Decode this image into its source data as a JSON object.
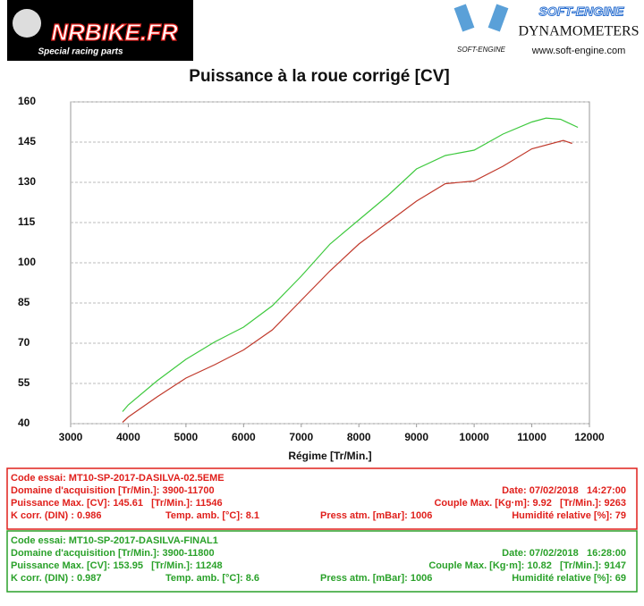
{
  "header": {
    "logo_brand": "NRBIKE.FR",
    "logo_tagline": "Special racing parts",
    "brand": "SOFT-ENGINE",
    "brand_sub": "DYNAMOMETERS",
    "brand_small": "SOFT-ENGINE",
    "url": "www.soft-engine.com"
  },
  "chart_data": {
    "type": "line",
    "title": "Puissance à la roue corrigé [CV]",
    "x_label": "Régime [Tr/Min.]",
    "xlim": [
      3000,
      12000
    ],
    "xticks": [
      3000,
      4000,
      5000,
      6000,
      7000,
      8000,
      9000,
      10000,
      11000,
      12000
    ],
    "ylim": [
      40,
      160
    ],
    "yticks": [
      40,
      55,
      70,
      85,
      100,
      115,
      130,
      145,
      160
    ],
    "grid": true,
    "series": [
      {
        "color": "#c0392b",
        "x": [
          3900,
          4000,
          4500,
          5000,
          5500,
          6000,
          6500,
          7000,
          7500,
          8000,
          8500,
          9000,
          9500,
          10000,
          10500,
          11000,
          11546,
          11700
        ],
        "values": [
          40.5,
          42.5,
          50,
          57,
          62,
          67.5,
          75,
          86,
          97,
          107,
          115,
          123,
          129.5,
          130.5,
          136,
          142.5,
          145.61,
          144.5
        ]
      },
      {
        "color": "#3ec93e",
        "x": [
          3900,
          4000,
          4500,
          5000,
          5500,
          6000,
          6500,
          7000,
          7500,
          8000,
          8500,
          9000,
          9500,
          10000,
          10500,
          11000,
          11248,
          11500,
          11800
        ],
        "values": [
          44.5,
          47,
          56,
          64,
          70.5,
          76,
          84,
          95,
          107,
          116,
          125,
          135,
          140,
          142,
          148,
          152.5,
          153.95,
          153.5,
          150.5
        ]
      }
    ]
  },
  "info_panels": [
    {
      "color": "#e0201c",
      "rows": [
        [
          "Code essai: MT10-SP-2017-DASILVA-02.5EME"
        ],
        [
          "Domaine d'acquisition [Tr/Min.]: 3900-11700",
          "Date: 07/02/2018   14:27:00"
        ],
        [
          "Puissance Max. [CV]: 145.61   [Tr/Min.]: 11546",
          "Couple Max. [Kg·m]: 9.92   [Tr/Min.]: 9263"
        ],
        [
          "K corr. (DIN) : 0.986",
          "Temp. amb. [°C]: 8.1",
          "Press atm. [mBar]: 1006",
          "Humidité relative [%]: 79"
        ]
      ]
    },
    {
      "color": "#2aa12a",
      "rows": [
        [
          "Code essai: MT10-SP-2017-DASILVA-FINAL1"
        ],
        [
          "Domaine d'acquisition [Tr/Min.]: 3900-11800",
          "Date: 07/02/2018   16:28:00"
        ],
        [
          "Puissance Max. [CV]: 153.95   [Tr/Min.]: 11248",
          "Couple Max. [Kg·m]: 10.82   [Tr/Min.]: 9147"
        ],
        [
          "K corr. (DIN) : 0.987",
          "Temp. amb. [°C]: 8.6",
          "Press atm. [mBar]: 1006",
          "Humidité relative [%]: 69"
        ]
      ]
    }
  ]
}
